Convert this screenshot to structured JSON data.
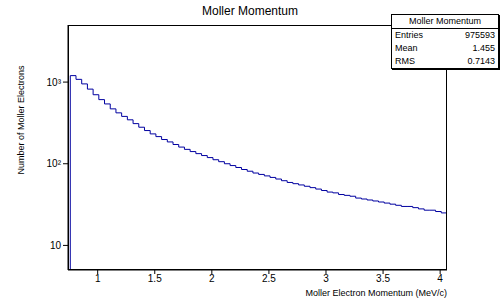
{
  "chart_data": {
    "type": "histogram",
    "title": "Moller Momentum",
    "x_label": "Moller Electron Momentum (MeV/c)",
    "y_label": "Number of Moller Electrons",
    "log": "y",
    "grid": false,
    "color": "#0000a0",
    "line_style": "step",
    "xlim": [
      0.74,
      4.06
    ],
    "ylim": [
      5,
      5000
    ],
    "xticks": [
      1,
      1.5,
      2,
      2.5,
      3,
      3.5,
      4
    ],
    "yticks": [
      10,
      {
        "value": 100,
        "label": "10²"
      },
      {
        "value": 1000,
        "label": "10³"
      }
    ],
    "bins": [
      0.76,
      0.81,
      0.86,
      0.91,
      0.96,
      1.01,
      1.06,
      1.11,
      1.16,
      1.21,
      1.26,
      1.31,
      1.36,
      1.41,
      1.46,
      1.51,
      1.56,
      1.61,
      1.66,
      1.71,
      1.76,
      1.81,
      1.86,
      1.91,
      1.96,
      2.01,
      2.06,
      2.11,
      2.16,
      2.21,
      2.26,
      2.31,
      2.36,
      2.41,
      2.46,
      2.51,
      2.56,
      2.61,
      2.66,
      2.71,
      2.76,
      2.81,
      2.86,
      2.91,
      2.96,
      3.01,
      3.06,
      3.11,
      3.16,
      3.21,
      3.26,
      3.31,
      3.36,
      3.41,
      3.46,
      3.51,
      3.56,
      3.61,
      3.66,
      3.71,
      3.76,
      3.81,
      3.86,
      3.91,
      3.96,
      4.01,
      4.06
    ],
    "values": [
      1200,
      1080,
      950,
      820,
      700,
      610,
      540,
      470,
      420,
      380,
      345,
      310,
      280,
      255,
      232,
      215,
      198,
      185,
      172,
      160,
      150,
      141,
      133,
      126,
      119,
      112,
      106,
      100,
      95,
      90,
      85,
      81,
      77,
      74,
      71,
      68,
      65,
      62,
      59,
      57,
      55,
      53,
      51,
      49,
      47,
      45,
      44,
      42,
      41,
      40,
      38,
      37,
      36,
      35,
      34,
      33,
      32,
      31,
      30,
      30,
      29,
      28,
      27,
      27,
      26,
      25
    ],
    "stats": {
      "title": "Moller Momentum",
      "rows": [
        {
          "label": "Entries",
          "value": 975593
        },
        {
          "label": "Mean",
          "value": 1.455
        },
        {
          "label": "RMS",
          "value": 0.7143
        }
      ]
    }
  }
}
